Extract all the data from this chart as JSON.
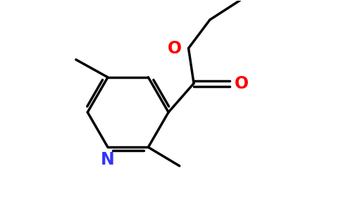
{
  "background_color": "#ffffff",
  "bond_color": "#000000",
  "nitrogen_color": "#3333ff",
  "oxygen_color": "#ff0000",
  "bond_width": 2.5,
  "dbo": 0.08,
  "figsize": [
    4.84,
    3.0
  ],
  "dpi": 100,
  "xlim": [
    0.0,
    6.5
  ],
  "ylim": [
    0.0,
    5.2
  ]
}
